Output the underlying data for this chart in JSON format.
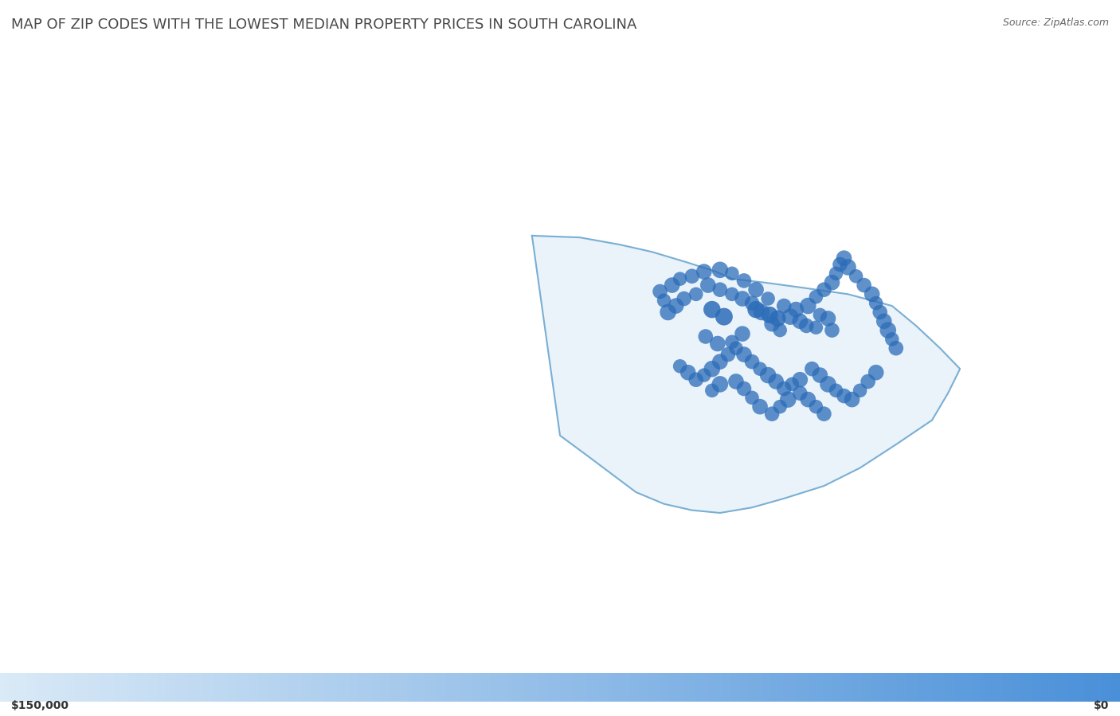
{
  "title": "MAP OF ZIP CODES WITH THE LOWEST MEDIAN PROPERTY PRICES IN SOUTH CAROLINA",
  "source": "Source: ZipAtlas.com",
  "colorbar_min_label": "$150,000",
  "colorbar_max_label": "$0",
  "title_color": "#4a4a4a",
  "title_fontsize": 13,
  "background_map_color": "#f0ede4",
  "sc_fill_color": "#d6e8f7",
  "sc_border_color": "#7aafd4",
  "dot_color_dark": "#2b6cb8",
  "dot_color_light": "#7fb3e8",
  "colorbar_left_color": "#daeaf7",
  "colorbar_right_color": "#4a90d9",
  "fig_width": 14.06,
  "fig_height": 8.99,
  "sc_zip_dots": [
    {
      "lon": -81.03,
      "lat": 34.0,
      "size": 200,
      "alpha": 0.75
    },
    {
      "lon": -81.18,
      "lat": 34.08,
      "size": 180,
      "alpha": 0.75
    },
    {
      "lon": -80.85,
      "lat": 34.02,
      "size": 160,
      "alpha": 0.75
    },
    {
      "lon": -80.72,
      "lat": 34.11,
      "size": 200,
      "alpha": 0.75
    },
    {
      "lon": -79.92,
      "lat": 34.2,
      "size": 180,
      "alpha": 0.75
    },
    {
      "lon": -79.8,
      "lat": 34.18,
      "size": 160,
      "alpha": 0.75
    },
    {
      "lon": -80.0,
      "lat": 34.25,
      "size": 200,
      "alpha": 0.75
    },
    {
      "lon": -80.12,
      "lat": 34.3,
      "size": 220,
      "alpha": 0.75
    },
    {
      "lon": -79.75,
      "lat": 34.32,
      "size": 160,
      "alpha": 0.75
    },
    {
      "lon": -79.65,
      "lat": 34.28,
      "size": 200,
      "alpha": 0.75
    },
    {
      "lon": -79.6,
      "lat": 34.15,
      "size": 180,
      "alpha": 0.75
    },
    {
      "lon": -80.25,
      "lat": 34.15,
      "size": 160,
      "alpha": 0.75
    },
    {
      "lon": -80.35,
      "lat": 34.22,
      "size": 200,
      "alpha": 0.75
    },
    {
      "lon": -80.48,
      "lat": 34.35,
      "size": 220,
      "alpha": 0.75
    },
    {
      "lon": -80.6,
      "lat": 34.45,
      "size": 180,
      "alpha": 0.75
    },
    {
      "lon": -80.72,
      "lat": 34.5,
      "size": 200,
      "alpha": 0.75
    },
    {
      "lon": -80.85,
      "lat": 34.55,
      "size": 160,
      "alpha": 0.75
    },
    {
      "lon": -81.0,
      "lat": 34.6,
      "size": 180,
      "alpha": 0.75
    },
    {
      "lon": -81.15,
      "lat": 34.65,
      "size": 200,
      "alpha": 0.75
    },
    {
      "lon": -81.3,
      "lat": 34.55,
      "size": 160,
      "alpha": 0.75
    },
    {
      "lon": -81.45,
      "lat": 34.5,
      "size": 180,
      "alpha": 0.75
    },
    {
      "lon": -81.55,
      "lat": 34.42,
      "size": 200,
      "alpha": 0.75
    },
    {
      "lon": -81.65,
      "lat": 34.35,
      "size": 220,
      "alpha": 0.75
    },
    {
      "lon": -81.7,
      "lat": 34.48,
      "size": 160,
      "alpha": 0.75
    },
    {
      "lon": -81.75,
      "lat": 34.58,
      "size": 180,
      "alpha": 0.75
    },
    {
      "lon": -81.6,
      "lat": 34.65,
      "size": 200,
      "alpha": 0.75
    },
    {
      "lon": -81.5,
      "lat": 34.72,
      "size": 160,
      "alpha": 0.75
    },
    {
      "lon": -81.35,
      "lat": 34.75,
      "size": 180,
      "alpha": 0.75
    },
    {
      "lon": -81.2,
      "lat": 34.8,
      "size": 200,
      "alpha": 0.75
    },
    {
      "lon": -81.0,
      "lat": 34.82,
      "size": 220,
      "alpha": 0.75
    },
    {
      "lon": -80.85,
      "lat": 34.78,
      "size": 160,
      "alpha": 0.75
    },
    {
      "lon": -80.7,
      "lat": 34.7,
      "size": 180,
      "alpha": 0.75
    },
    {
      "lon": -80.55,
      "lat": 34.6,
      "size": 200,
      "alpha": 0.75
    },
    {
      "lon": -80.4,
      "lat": 34.5,
      "size": 160,
      "alpha": 0.75
    },
    {
      "lon": -80.2,
      "lat": 34.42,
      "size": 180,
      "alpha": 0.75
    },
    {
      "lon": -80.05,
      "lat": 34.38,
      "size": 200,
      "alpha": 0.75
    },
    {
      "lon": -79.9,
      "lat": 34.42,
      "size": 220,
      "alpha": 0.75
    },
    {
      "lon": -79.8,
      "lat": 34.52,
      "size": 160,
      "alpha": 0.75
    },
    {
      "lon": -79.7,
      "lat": 34.6,
      "size": 180,
      "alpha": 0.75
    },
    {
      "lon": -79.6,
      "lat": 34.68,
      "size": 200,
      "alpha": 0.75
    },
    {
      "lon": -79.55,
      "lat": 34.78,
      "size": 160,
      "alpha": 0.75
    },
    {
      "lon": -79.5,
      "lat": 34.88,
      "size": 180,
      "alpha": 0.75
    },
    {
      "lon": -79.45,
      "lat": 34.95,
      "size": 200,
      "alpha": 0.75
    },
    {
      "lon": -79.4,
      "lat": 34.85,
      "size": 220,
      "alpha": 0.75
    },
    {
      "lon": -79.3,
      "lat": 34.75,
      "size": 160,
      "alpha": 0.75
    },
    {
      "lon": -79.2,
      "lat": 34.65,
      "size": 180,
      "alpha": 0.75
    },
    {
      "lon": -79.1,
      "lat": 34.55,
      "size": 200,
      "alpha": 0.75
    },
    {
      "lon": -79.05,
      "lat": 34.45,
      "size": 160,
      "alpha": 0.75
    },
    {
      "lon": -79.0,
      "lat": 34.35,
      "size": 180,
      "alpha": 0.75
    },
    {
      "lon": -78.95,
      "lat": 34.25,
      "size": 200,
      "alpha": 0.75
    },
    {
      "lon": -78.9,
      "lat": 34.15,
      "size": 220,
      "alpha": 0.75
    },
    {
      "lon": -78.85,
      "lat": 34.05,
      "size": 160,
      "alpha": 0.75
    },
    {
      "lon": -78.8,
      "lat": 33.95,
      "size": 180,
      "alpha": 0.75
    },
    {
      "lon": -80.0,
      "lat": 33.6,
      "size": 200,
      "alpha": 0.75
    },
    {
      "lon": -80.1,
      "lat": 33.55,
      "size": 160,
      "alpha": 0.75
    },
    {
      "lon": -80.2,
      "lat": 33.5,
      "size": 180,
      "alpha": 0.75
    },
    {
      "lon": -80.3,
      "lat": 33.58,
      "size": 200,
      "alpha": 0.75
    },
    {
      "lon": -80.4,
      "lat": 33.65,
      "size": 220,
      "alpha": 0.75
    },
    {
      "lon": -80.5,
      "lat": 33.72,
      "size": 160,
      "alpha": 0.75
    },
    {
      "lon": -80.6,
      "lat": 33.8,
      "size": 180,
      "alpha": 0.75
    },
    {
      "lon": -80.7,
      "lat": 33.88,
      "size": 200,
      "alpha": 0.75
    },
    {
      "lon": -80.8,
      "lat": 33.95,
      "size": 160,
      "alpha": 0.75
    },
    {
      "lon": -80.9,
      "lat": 33.88,
      "size": 180,
      "alpha": 0.75
    },
    {
      "lon": -81.0,
      "lat": 33.8,
      "size": 200,
      "alpha": 0.75
    },
    {
      "lon": -81.1,
      "lat": 33.72,
      "size": 220,
      "alpha": 0.75
    },
    {
      "lon": -81.2,
      "lat": 33.65,
      "size": 160,
      "alpha": 0.75
    },
    {
      "lon": -81.3,
      "lat": 33.6,
      "size": 180,
      "alpha": 0.75
    },
    {
      "lon": -81.4,
      "lat": 33.68,
      "size": 200,
      "alpha": 0.75
    },
    {
      "lon": -81.5,
      "lat": 33.75,
      "size": 160,
      "alpha": 0.75
    },
    {
      "lon": -79.85,
      "lat": 33.72,
      "size": 180,
      "alpha": 0.75
    },
    {
      "lon": -79.75,
      "lat": 33.65,
      "size": 200,
      "alpha": 0.75
    },
    {
      "lon": -79.65,
      "lat": 33.55,
      "size": 220,
      "alpha": 0.75
    },
    {
      "lon": -79.55,
      "lat": 33.48,
      "size": 160,
      "alpha": 0.75
    },
    {
      "lon": -79.45,
      "lat": 33.42,
      "size": 180,
      "alpha": 0.75
    },
    {
      "lon": -79.35,
      "lat": 33.38,
      "size": 200,
      "alpha": 0.75
    },
    {
      "lon": -79.25,
      "lat": 33.48,
      "size": 160,
      "alpha": 0.75
    },
    {
      "lon": -79.15,
      "lat": 33.58,
      "size": 180,
      "alpha": 0.75
    },
    {
      "lon": -79.05,
      "lat": 33.68,
      "size": 200,
      "alpha": 0.75
    },
    {
      "lon": -80.15,
      "lat": 33.38,
      "size": 220,
      "alpha": 0.75
    },
    {
      "lon": -80.25,
      "lat": 33.3,
      "size": 160,
      "alpha": 0.75
    },
    {
      "lon": -80.35,
      "lat": 33.22,
      "size": 180,
      "alpha": 0.75
    },
    {
      "lon": -80.5,
      "lat": 33.3,
      "size": 200,
      "alpha": 0.75
    },
    {
      "lon": -80.6,
      "lat": 33.4,
      "size": 160,
      "alpha": 0.75
    },
    {
      "lon": -80.7,
      "lat": 33.5,
      "size": 180,
      "alpha": 0.75
    },
    {
      "lon": -80.8,
      "lat": 33.58,
      "size": 200,
      "alpha": 0.75
    },
    {
      "lon": -81.0,
      "lat": 33.55,
      "size": 220,
      "alpha": 0.75
    },
    {
      "lon": -81.1,
      "lat": 33.48,
      "size": 160,
      "alpha": 0.75
    },
    {
      "lon": -80.0,
      "lat": 33.45,
      "size": 180,
      "alpha": 0.75
    },
    {
      "lon": -79.9,
      "lat": 33.38,
      "size": 200,
      "alpha": 0.75
    },
    {
      "lon": -79.8,
      "lat": 33.3,
      "size": 160,
      "alpha": 0.75
    },
    {
      "lon": -79.7,
      "lat": 33.22,
      "size": 180,
      "alpha": 0.75
    },
    {
      "lon": -80.95,
      "lat": 34.3,
      "size": 250,
      "alpha": 0.85
    },
    {
      "lon": -80.55,
      "lat": 34.38,
      "size": 240,
      "alpha": 0.85
    },
    {
      "lon": -80.38,
      "lat": 34.32,
      "size": 230,
      "alpha": 0.85
    },
    {
      "lon": -80.28,
      "lat": 34.28,
      "size": 220,
      "alpha": 0.85
    },
    {
      "lon": -81.1,
      "lat": 34.38,
      "size": 240,
      "alpha": 0.85
    }
  ]
}
